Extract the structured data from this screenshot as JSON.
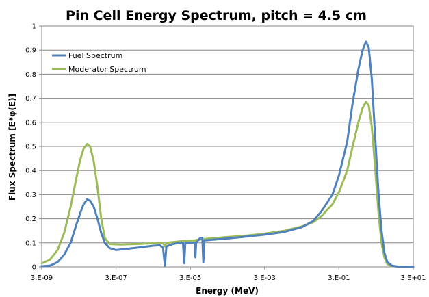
{
  "chart_data": {
    "type": "line",
    "title": "Pin Cell Energy Spectrum, pitch = 4.5 cm",
    "xlabel": "Energy (MeV)",
    "ylabel": "Flux Spectrum [E*φ(E)]",
    "x_scale": "log",
    "xlim": [
      3e-09,
      30
    ],
    "ylim": [
      0,
      1
    ],
    "x_ticks": [
      "3.E-09",
      "3.E-07",
      "3.E-05",
      "3.E-03",
      "3.E-01",
      "3.E+01"
    ],
    "y_ticks": [
      "0",
      "0.1",
      "0.2",
      "0.3",
      "0.4",
      "0.5",
      "0.6",
      "0.7",
      "0.8",
      "0.9",
      "1"
    ],
    "grid": "horizontal",
    "legend_position": "top-left",
    "series": [
      {
        "name": "Fuel Spectrum",
        "color": "#4F81BD",
        "points": [
          [
            3e-09,
            0.003
          ],
          [
            5e-09,
            0.005
          ],
          [
            8e-09,
            0.02
          ],
          [
            1.2e-08,
            0.05
          ],
          [
            1.8e-08,
            0.1
          ],
          [
            2.5e-08,
            0.17
          ],
          [
            3.2e-08,
            0.22
          ],
          [
            4e-08,
            0.26
          ],
          [
            5e-08,
            0.28
          ],
          [
            6e-08,
            0.275
          ],
          [
            7.5e-08,
            0.25
          ],
          [
            9.5e-08,
            0.2
          ],
          [
            1.2e-07,
            0.14
          ],
          [
            1.5e-07,
            0.1
          ],
          [
            2e-07,
            0.078
          ],
          [
            3e-07,
            0.07
          ],
          [
            6e-07,
            0.075
          ],
          [
            1.5e-06,
            0.082
          ],
          [
            3e-06,
            0.088
          ],
          [
            4.5e-06,
            0.09
          ],
          [
            5.5e-06,
            0.08
          ],
          [
            6.2e-06,
            0.005
          ],
          [
            6.8e-06,
            0.085
          ],
          [
            1e-05,
            0.095
          ],
          [
            1.6e-05,
            0.1
          ],
          [
            1.9e-05,
            0.1
          ],
          [
            2.05e-05,
            0.015
          ],
          [
            2.2e-05,
            0.1
          ],
          [
            3.6e-05,
            0.1
          ],
          [
            3.9e-05,
            0.1
          ],
          [
            4.1e-05,
            0.04
          ],
          [
            4.3e-05,
            0.1
          ],
          [
            5.5e-05,
            0.12
          ],
          [
            6.3e-05,
            0.12
          ],
          [
            6.7e-05,
            0.02
          ],
          [
            7.2e-05,
            0.11
          ],
          [
            0.0001,
            0.112
          ],
          [
            0.0003,
            0.118
          ],
          [
            0.001,
            0.126
          ],
          [
            0.003,
            0.134
          ],
          [
            0.01,
            0.145
          ],
          [
            0.03,
            0.165
          ],
          [
            0.06,
            0.19
          ],
          [
            0.1,
            0.23
          ],
          [
            0.2,
            0.3
          ],
          [
            0.3,
            0.38
          ],
          [
            0.5,
            0.52
          ],
          [
            0.7,
            0.68
          ],
          [
            1,
            0.82
          ],
          [
            1.3,
            0.9
          ],
          [
            1.6,
            0.935
          ],
          [
            1.9,
            0.91
          ],
          [
            2.3,
            0.78
          ],
          [
            2.8,
            0.55
          ],
          [
            3.5,
            0.3
          ],
          [
            4.2,
            0.15
          ],
          [
            5,
            0.06
          ],
          [
            6,
            0.02
          ],
          [
            8,
            0.005
          ],
          [
            12,
            0.001
          ],
          [
            30,
            0
          ]
        ]
      },
      {
        "name": "Moderator Spectrum",
        "color": "#9BBB59",
        "points": [
          [
            3e-09,
            0.015
          ],
          [
            5e-09,
            0.03
          ],
          [
            8e-09,
            0.07
          ],
          [
            1.2e-08,
            0.14
          ],
          [
            1.8e-08,
            0.25
          ],
          [
            2.5e-08,
            0.36
          ],
          [
            3.2e-08,
            0.44
          ],
          [
            4e-08,
            0.49
          ],
          [
            5e-08,
            0.51
          ],
          [
            6e-08,
            0.5
          ],
          [
            7.5e-08,
            0.44
          ],
          [
            9.5e-08,
            0.33
          ],
          [
            1.2e-07,
            0.2
          ],
          [
            1.5e-07,
            0.12
          ],
          [
            2e-07,
            0.095
          ],
          [
            4e-07,
            0.093
          ],
          [
            1e-06,
            0.095
          ],
          [
            3e-06,
            0.098
          ],
          [
            5.5e-06,
            0.098
          ],
          [
            6.2e-06,
            0.085
          ],
          [
            6.8e-06,
            0.1
          ],
          [
            2e-05,
            0.108
          ],
          [
            3.8e-05,
            0.11
          ],
          [
            4.1e-05,
            0.09
          ],
          [
            4.3e-05,
            0.112
          ],
          [
            0.0001,
            0.118
          ],
          [
            0.0003,
            0.124
          ],
          [
            0.001,
            0.13
          ],
          [
            0.003,
            0.138
          ],
          [
            0.01,
            0.15
          ],
          [
            0.03,
            0.168
          ],
          [
            0.06,
            0.185
          ],
          [
            0.1,
            0.21
          ],
          [
            0.2,
            0.26
          ],
          [
            0.3,
            0.31
          ],
          [
            0.5,
            0.4
          ],
          [
            0.7,
            0.5
          ],
          [
            1,
            0.6
          ],
          [
            1.3,
            0.66
          ],
          [
            1.6,
            0.685
          ],
          [
            1.9,
            0.67
          ],
          [
            2.3,
            0.58
          ],
          [
            2.8,
            0.42
          ],
          [
            3.5,
            0.22
          ],
          [
            4.2,
            0.1
          ],
          [
            5,
            0.04
          ],
          [
            6,
            0.012
          ],
          [
            8,
            0.003
          ],
          [
            12,
            0.001
          ],
          [
            30,
            0
          ]
        ]
      }
    ]
  }
}
